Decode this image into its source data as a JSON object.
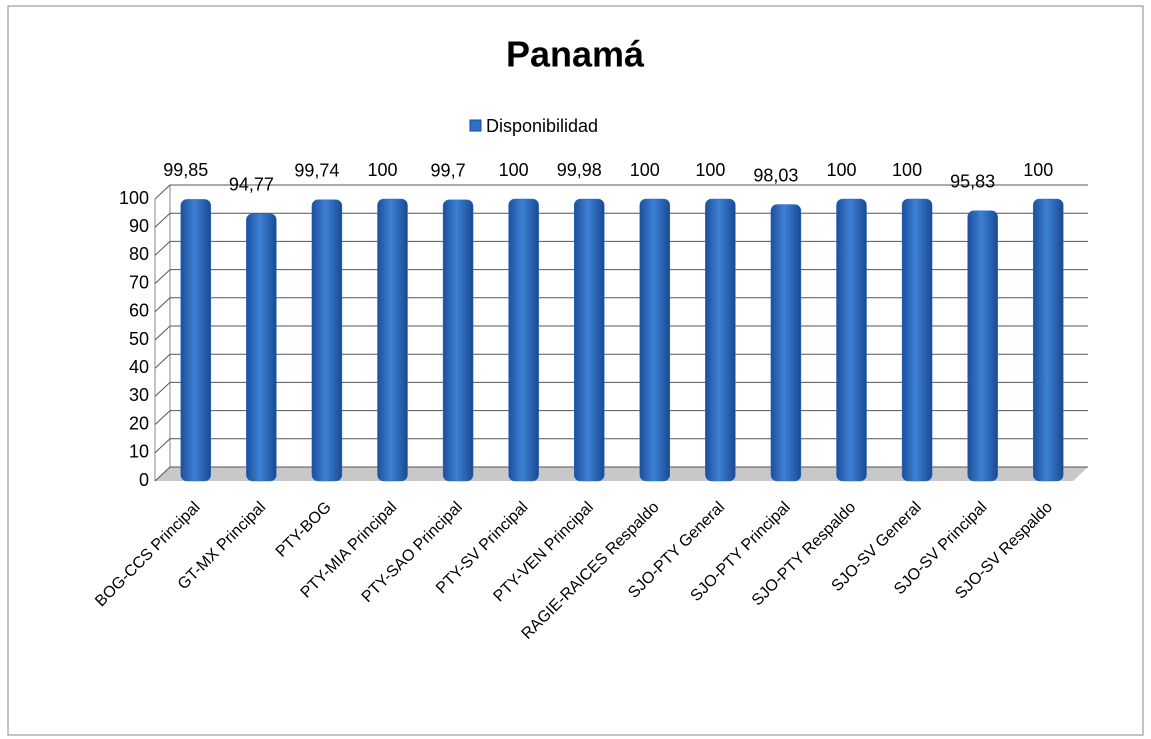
{
  "chart_data": {
    "type": "bar",
    "title": "Panamá",
    "categories": [
      "BOG-CCS Principal",
      "GT-MX Principal",
      "PTY-BOG",
      "PTY-MIA Principal",
      "PTY-SAO Principal",
      "PTY-SV Principal",
      "PTY-VEN Principal",
      "RAGIE-RAICES Respaldo",
      "SJO-PTY General",
      "SJO-PTY Principal",
      "SJO-PTY Respaldo",
      "SJO-SV General",
      "SJO-SV Principal",
      "SJO-SV Respaldo"
    ],
    "series": [
      {
        "name": "Disponibilidad",
        "color": "#2e6fc9",
        "values": [
          99.85,
          94.77,
          99.74,
          100,
          99.7,
          100,
          99.98,
          100,
          100,
          98.03,
          100,
          100,
          95.83,
          100
        ],
        "value_labels": [
          "99,85",
          "94,77",
          "99,74",
          "100",
          "99,7",
          "100",
          "99,98",
          "100",
          "100",
          "98,03",
          "100",
          "100",
          "95,83",
          "100"
        ]
      }
    ],
    "ylim": [
      0,
      100
    ],
    "yticks": [
      0,
      10,
      20,
      30,
      40,
      50,
      60,
      70,
      80,
      90,
      100
    ],
    "grid": true,
    "legend": "top"
  }
}
